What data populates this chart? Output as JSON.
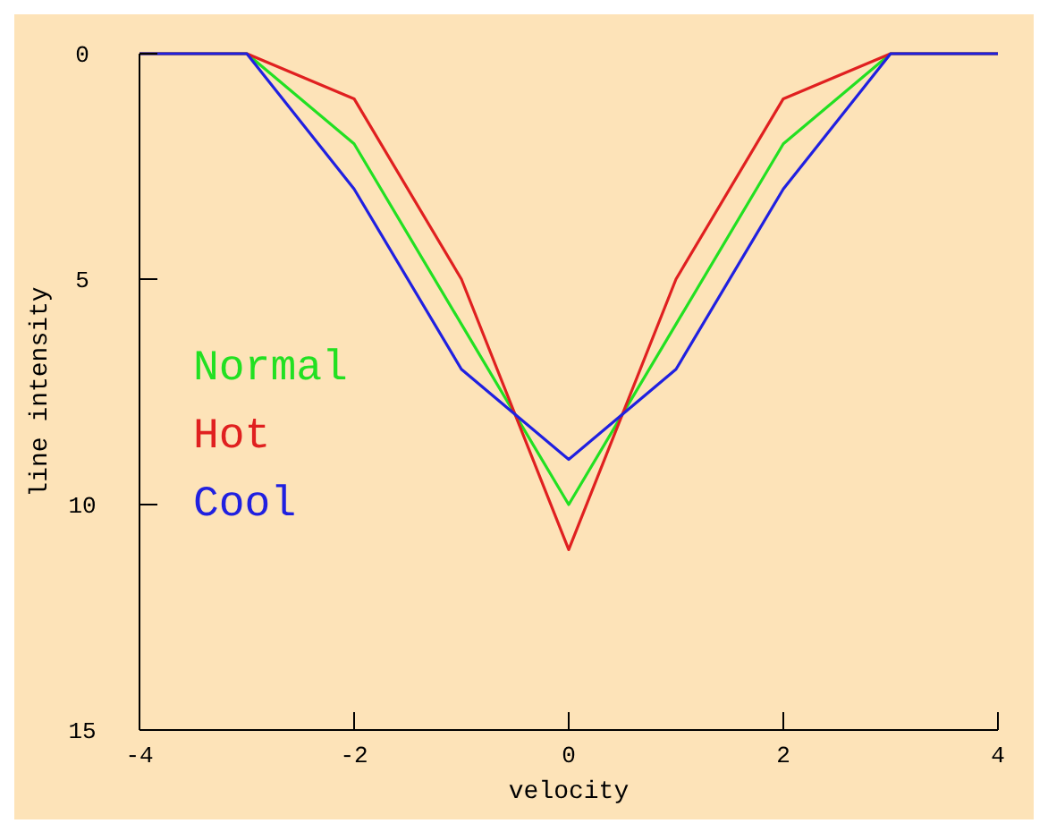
{
  "chart_data": {
    "type": "line",
    "xlabel": "velocity",
    "ylabel": "line intensity",
    "x": [
      -4,
      -3,
      -2,
      -1,
      0,
      1,
      2,
      3,
      4
    ],
    "xlim": [
      -4,
      4
    ],
    "ylim": [
      15,
      0
    ],
    "xticks": [
      -4,
      -2,
      0,
      2,
      4
    ],
    "yticks": [
      0,
      5,
      10,
      15
    ],
    "grid": false,
    "legend": "bottom left",
    "series": [
      {
        "name": "Normal",
        "color": "#22e022",
        "values": [
          0,
          0,
          2,
          6,
          10,
          6,
          2,
          0,
          0
        ]
      },
      {
        "name": "Hot",
        "color": "#e02020",
        "values": [
          0,
          0,
          1,
          5,
          11,
          5,
          1,
          0,
          0
        ]
      },
      {
        "name": "Cool",
        "color": "#2020e0",
        "values": [
          0,
          0,
          3,
          7,
          9,
          7,
          3,
          0,
          0
        ]
      }
    ]
  }
}
